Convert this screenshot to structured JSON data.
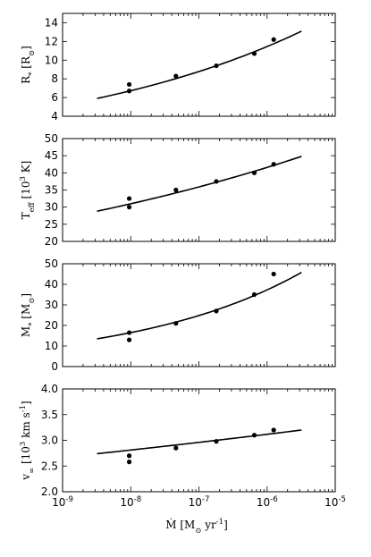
{
  "chart_data": [
    {
      "type": "scatter",
      "ylabel": "R_* [R_⊙]",
      "ylim": [
        4,
        15
      ],
      "yticks": [
        4,
        6,
        8,
        10,
        12,
        14
      ],
      "points": [
        {
          "x": 9.5e-09,
          "y": 7.4
        },
        {
          "x": 9.5e-09,
          "y": 6.7
        },
        {
          "x": 4.6e-08,
          "y": 8.3
        },
        {
          "x": 1.8e-07,
          "y": 9.4
        },
        {
          "x": 6.5e-07,
          "y": 10.7
        },
        {
          "x": 1.25e-06,
          "y": 12.2
        }
      ],
      "fit": {
        "x": [
          3.2e-09,
          3.2e-06
        ],
        "y": [
          5.9,
          13.1
        ]
      }
    },
    {
      "type": "scatter",
      "ylabel": "T_eff [10^3 K]",
      "ylim": [
        20,
        50
      ],
      "yticks": [
        20,
        25,
        30,
        35,
        40,
        45,
        50
      ],
      "points": [
        {
          "x": 9.5e-09,
          "y": 32.5
        },
        {
          "x": 9.5e-09,
          "y": 30.0
        },
        {
          "x": 4.6e-08,
          "y": 35.0
        },
        {
          "x": 1.8e-07,
          "y": 37.5
        },
        {
          "x": 6.5e-07,
          "y": 40.0
        },
        {
          "x": 1.25e-06,
          "y": 42.5
        }
      ],
      "fit": {
        "x": [
          3.2e-09,
          3.2e-06
        ],
        "y": [
          28.8,
          44.8
        ]
      }
    },
    {
      "type": "scatter",
      "ylabel": "M_* [M_⊙]",
      "ylim": [
        0,
        50
      ],
      "yticks": [
        0,
        10,
        20,
        30,
        40,
        50
      ],
      "points": [
        {
          "x": 9.5e-09,
          "y": 16.5
        },
        {
          "x": 9.5e-09,
          "y": 13.0
        },
        {
          "x": 4.6e-08,
          "y": 21.0
        },
        {
          "x": 1.8e-07,
          "y": 27.0
        },
        {
          "x": 6.5e-07,
          "y": 35.0
        },
        {
          "x": 1.25e-06,
          "y": 45.0
        }
      ],
      "fit": {
        "x": [
          3.2e-09,
          3.2e-06
        ],
        "y": [
          13.5,
          45.8
        ]
      }
    },
    {
      "type": "scatter",
      "ylabel": "v_∞ [10^3 km s^-1]",
      "ylim": [
        2.0,
        4.0
      ],
      "yticks": [
        "2.0",
        "2.5",
        "3.0",
        "3.5",
        "4.0"
      ],
      "points": [
        {
          "x": 9.5e-09,
          "y": 2.7
        },
        {
          "x": 9.5e-09,
          "y": 2.58
        },
        {
          "x": 4.6e-08,
          "y": 2.85
        },
        {
          "x": 1.8e-07,
          "y": 2.98
        },
        {
          "x": 6.5e-07,
          "y": 3.1
        },
        {
          "x": 1.25e-06,
          "y": 3.2
        }
      ],
      "fit": {
        "x": [
          3.2e-09,
          3.2e-06
        ],
        "y": [
          2.74,
          3.2
        ]
      }
    }
  ],
  "x_axis": {
    "label": "Ṁ [M_⊙ yr^-1]",
    "scale": "log",
    "xlim": [
      1e-09,
      1e-05
    ],
    "tick_labels": [
      "10^-9",
      "10^-8",
      "10^-7",
      "10^-6",
      "10^-5"
    ]
  }
}
